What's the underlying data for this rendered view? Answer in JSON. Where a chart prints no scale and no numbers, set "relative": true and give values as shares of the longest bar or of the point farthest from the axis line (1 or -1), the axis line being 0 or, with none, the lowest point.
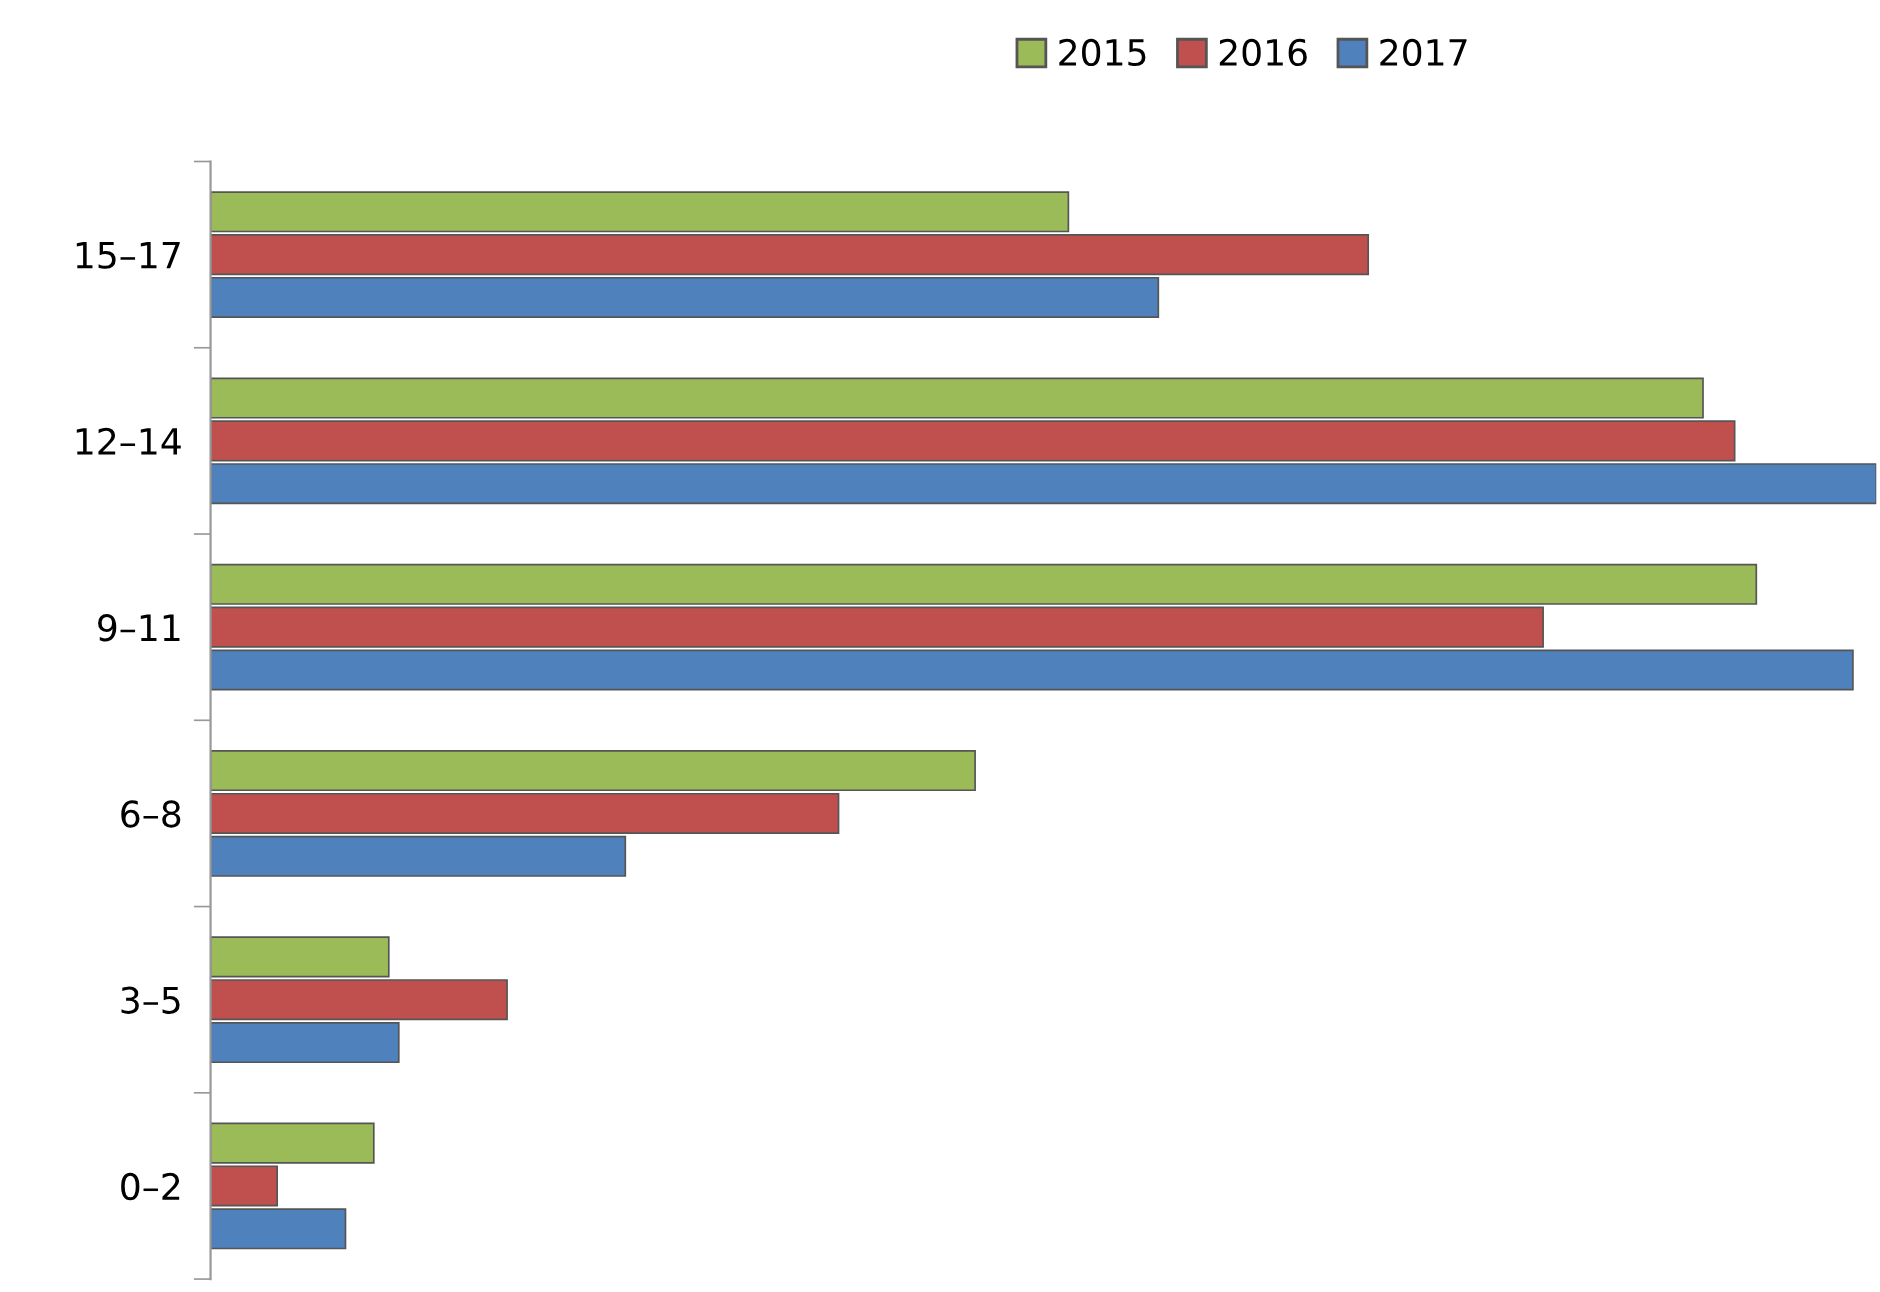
{
  "chart_data": {
    "type": "bar",
    "orientation": "horizontal",
    "relative": true,
    "categories": [
      "15–17",
      "12–14",
      "9–11",
      "6–8",
      "3–5",
      "0–2"
    ],
    "series": [
      {
        "name": "2015",
        "color": "#9bbb59",
        "values": [
          0.515,
          0.896,
          0.928,
          0.459,
          0.107,
          0.098
        ]
      },
      {
        "name": "2016",
        "color": "#c0504d",
        "values": [
          0.695,
          0.915,
          0.8,
          0.377,
          0.178,
          0.04
        ]
      },
      {
        "name": "2017",
        "color": "#4f81bd",
        "values": [
          0.569,
          1,
          0.986,
          0.249,
          0.113,
          0.081
        ]
      }
    ],
    "legend": "top",
    "grid": false
  }
}
